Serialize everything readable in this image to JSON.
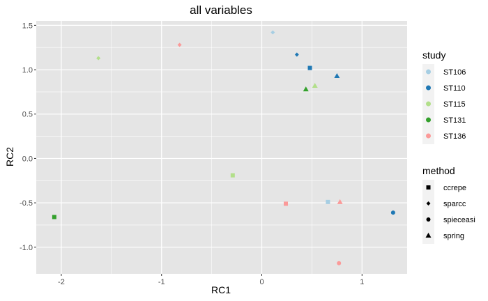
{
  "chart_data": {
    "type": "scatter",
    "title": "all variables",
    "xlabel": "RC1",
    "ylabel": "RC2",
    "xlim": [
      -2.25,
      1.45
    ],
    "ylim": [
      -1.3,
      1.55
    ],
    "x_ticks": [
      -2,
      -1,
      0,
      1
    ],
    "x_tick_labels": [
      "-2",
      "-1",
      "0",
      "1"
    ],
    "y_ticks": [
      -1.0,
      -0.5,
      0.0,
      0.5,
      1.0,
      1.5
    ],
    "y_tick_labels": [
      "-1.0",
      "-0.5",
      "0.0",
      "0.5",
      "1.0",
      "1.5"
    ],
    "grid": true,
    "legend_position": "right",
    "colors": {
      "panel": "#e5e5e5",
      "grid": "#ffffff",
      "ST106": "#a6cee3",
      "ST110": "#1f78b4",
      "ST115": "#b2df8a",
      "ST131": "#33a02c",
      "ST136": "#fb9a99"
    },
    "legend_study": {
      "title": "study",
      "items": [
        "ST106",
        "ST110",
        "ST115",
        "ST131",
        "ST136"
      ]
    },
    "legend_method": {
      "title": "method",
      "items": [
        {
          "label": "ccrepe",
          "shape": "square"
        },
        {
          "label": "sparcc",
          "shape": "diamond"
        },
        {
          "label": "spieceasi",
          "shape": "circle"
        },
        {
          "label": "spring",
          "shape": "triangle"
        }
      ]
    },
    "points": [
      {
        "study": "ST106",
        "method": "ccrepe",
        "x": 0.66,
        "y": -0.49
      },
      {
        "study": "ST106",
        "method": "sparcc",
        "x": 0.11,
        "y": 1.42
      },
      {
        "study": "ST110",
        "method": "ccrepe",
        "x": 0.48,
        "y": 1.02
      },
      {
        "study": "ST110",
        "method": "sparcc",
        "x": 0.35,
        "y": 1.17
      },
      {
        "study": "ST110",
        "method": "spieceasi",
        "x": 1.31,
        "y": -0.61
      },
      {
        "study": "ST110",
        "method": "spring",
        "x": 0.75,
        "y": 0.93
      },
      {
        "study": "ST115",
        "method": "ccrepe",
        "x": -0.29,
        "y": -0.19
      },
      {
        "study": "ST115",
        "method": "sparcc",
        "x": -1.63,
        "y": 1.13
      },
      {
        "study": "ST115",
        "method": "spring",
        "x": 0.53,
        "y": 0.82
      },
      {
        "study": "ST131",
        "method": "ccrepe",
        "x": -2.07,
        "y": -0.66
      },
      {
        "study": "ST131",
        "method": "spring",
        "x": 0.44,
        "y": 0.78
      },
      {
        "study": "ST136",
        "method": "ccrepe",
        "x": 0.24,
        "y": -0.51
      },
      {
        "study": "ST136",
        "method": "sparcc",
        "x": -0.82,
        "y": 1.28
      },
      {
        "study": "ST136",
        "method": "spieceasi",
        "x": 0.77,
        "y": -1.18
      },
      {
        "study": "ST136",
        "method": "spring",
        "x": 0.78,
        "y": -0.49
      }
    ]
  }
}
